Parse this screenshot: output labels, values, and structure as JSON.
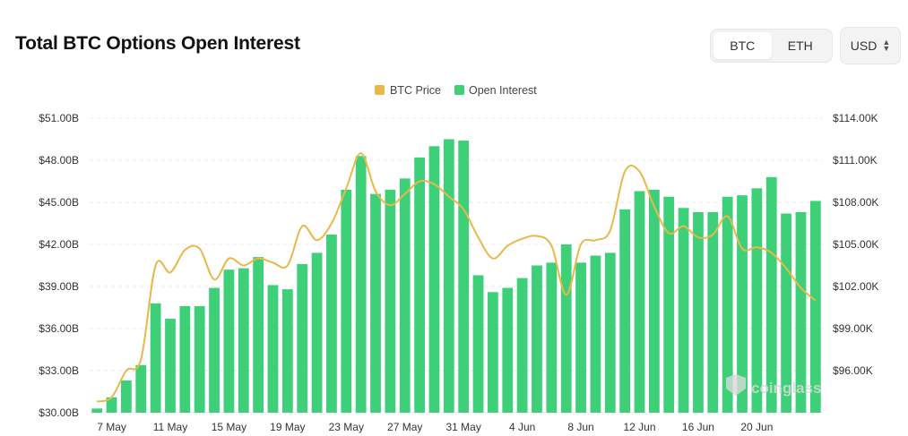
{
  "header": {
    "title": "Total BTC Options Open Interest",
    "asset_tabs": [
      {
        "label": "BTC",
        "active": true
      },
      {
        "label": "ETH",
        "active": false
      }
    ],
    "currency": {
      "value": "USD",
      "icon": "chevron-up-down-icon"
    }
  },
  "watermark": {
    "text": "coinglass",
    "icon": "coinglass-logo-icon"
  },
  "colors": {
    "open_interest": "#3ecf79",
    "btc_price": "#e8b84a",
    "grid": "#e8e8e8",
    "axis_text": "#333333"
  },
  "chart_data": {
    "type": "bar",
    "legend_position": "top-center",
    "grid": true,
    "x_tick_labels": [
      "7 May",
      "11 May",
      "15 May",
      "19 May",
      "23 May",
      "27 May",
      "31 May",
      "4 Jun",
      "8 Jun",
      "12 Jun",
      "16 Jun",
      "20 Jun"
    ],
    "y_left": {
      "min": 30,
      "max": 51,
      "ticks": [
        "$30.00B",
        "$33.00B",
        "$36.00B",
        "$39.00B",
        "$42.00B",
        "$45.00B",
        "$48.00B",
        "$51.00B"
      ]
    },
    "y_right": {
      "min": 93,
      "max": 114,
      "ticks": [
        "$96.00K",
        "$99.00K",
        "$102.00K",
        "$105.00K",
        "$108.00K",
        "$111.00K",
        "$114.00K"
      ]
    },
    "series": [
      {
        "name": "Open Interest",
        "type": "bar",
        "axis": "left",
        "unit": "B USD",
        "values": [
          30.3,
          31.1,
          32.3,
          33.4,
          37.8,
          36.7,
          37.6,
          37.6,
          38.9,
          40.2,
          40.3,
          41.1,
          39.1,
          38.8,
          40.6,
          41.4,
          42.7,
          45.9,
          48.3,
          45.6,
          45.9,
          46.7,
          48.2,
          49.0,
          49.5,
          49.4,
          39.8,
          38.6,
          38.9,
          39.6,
          40.5,
          40.7,
          42.0,
          40.7,
          41.2,
          41.4,
          44.5,
          45.8,
          45.9,
          45.4,
          44.6,
          44.3,
          44.3,
          45.4,
          45.5,
          46.0,
          46.8,
          44.2,
          44.3,
          45.1
        ]
      },
      {
        "name": "BTC Price",
        "type": "line",
        "axis": "right",
        "unit": "K USD",
        "values": [
          93.8,
          94.1,
          96.0,
          96.8,
          103.5,
          103.0,
          104.6,
          104.7,
          102.5,
          104.0,
          103.5,
          104.0,
          103.7,
          103.5,
          106.3,
          105.3,
          106.5,
          109.0,
          111.5,
          108.8,
          107.8,
          108.6,
          109.5,
          109.3,
          108.4,
          107.5,
          105.5,
          104.0,
          104.9,
          105.4,
          105.6,
          104.9,
          101.4,
          105.0,
          105.3,
          106.0,
          110.2,
          110.2,
          107.7,
          105.8,
          106.3,
          105.5,
          105.7,
          107.0,
          104.7,
          104.8,
          104.4,
          103.3,
          101.9,
          101.0
        ]
      }
    ]
  }
}
